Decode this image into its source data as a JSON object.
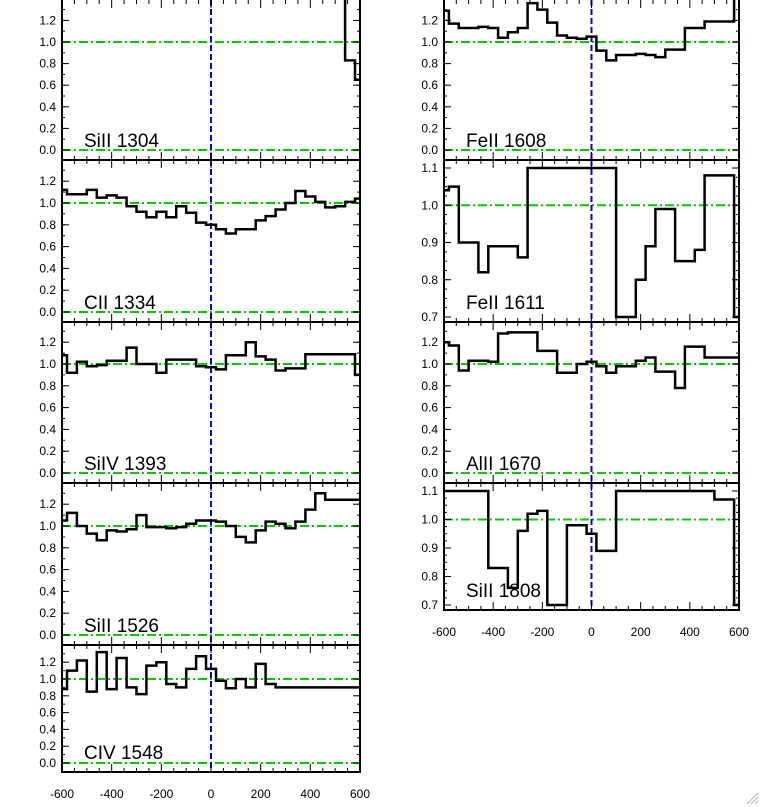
{
  "chart_data": [
    {
      "type": "line",
      "label": "SiII 1304",
      "ylim": [
        -0.08,
        1.37
      ],
      "yticks": [
        "0.0",
        "0.2",
        "0.4",
        "0.6",
        "0.8",
        "1.0",
        "1.2"
      ],
      "reference_lines": {
        "y": [
          0.0,
          1.0
        ],
        "x": [
          0
        ]
      },
      "x": [
        520,
        560,
        600
      ],
      "y": [
        1.45,
        0.83,
        0.65
      ]
    },
    {
      "type": "line",
      "label": "CII 1334",
      "ylim": [
        -0.08,
        1.37
      ],
      "yticks": [
        "0.0",
        "0.2",
        "0.4",
        "0.6",
        "0.8",
        "1.0",
        "1.2"
      ],
      "reference_lines": {
        "y": [
          0.0,
          1.0
        ],
        "x": [
          0
        ]
      },
      "x": [
        -600,
        -560,
        -520,
        -480,
        -440,
        -400,
        -360,
        -320,
        -280,
        -240,
        -200,
        -160,
        -120,
        -80,
        -40,
        0,
        40,
        80,
        120,
        160,
        200,
        240,
        280,
        320,
        360,
        400,
        440,
        480,
        520,
        560,
        600
      ],
      "y": [
        1.12,
        1.08,
        1.08,
        1.12,
        1.05,
        1.07,
        1.05,
        0.97,
        0.92,
        0.87,
        0.92,
        0.87,
        0.97,
        0.91,
        0.82,
        0.8,
        0.76,
        0.72,
        0.76,
        0.76,
        0.84,
        0.88,
        0.94,
        1.0,
        1.11,
        1.06,
        1.01,
        0.96,
        0.97,
        1.01,
        1.04
      ]
    },
    {
      "type": "line",
      "label": "SiIV 1393",
      "ylim": [
        -0.08,
        1.37
      ],
      "yticks": [
        "0.0",
        "0.2",
        "0.4",
        "0.6",
        "0.8",
        "1.0",
        "1.2"
      ],
      "reference_lines": {
        "y": [
          0.0,
          1.0
        ],
        "x": [
          0
        ]
      },
      "x": [
        -600,
        -560,
        -520,
        -480,
        -440,
        -400,
        -360,
        -320,
        -280,
        -240,
        -200,
        -160,
        -120,
        -80,
        -40,
        0,
        40,
        80,
        120,
        160,
        200,
        240,
        280,
        320,
        360,
        400,
        440,
        480,
        520,
        560,
        600
      ],
      "y": [
        1.08,
        0.92,
        1.02,
        0.98,
        0.99,
        1.03,
        1.03,
        1.15,
        1.0,
        1.0,
        0.92,
        1.04,
        1.04,
        1.04,
        0.98,
        0.97,
        0.95,
        1.08,
        1.08,
        1.2,
        1.07,
        1.04,
        0.94,
        0.96,
        0.96,
        1.09,
        1.09,
        1.09,
        1.09,
        1.09,
        0.9
      ]
    },
    {
      "type": "line",
      "label": "SiII 1526",
      "ylim": [
        -0.08,
        1.37
      ],
      "yticks": [
        "0.0",
        "0.2",
        "0.4",
        "0.6",
        "0.8",
        "1.0",
        "1.2"
      ],
      "reference_lines": {
        "y": [
          0.0,
          1.0
        ],
        "x": [
          0
        ]
      },
      "x": [
        -600,
        -560,
        -520,
        -480,
        -440,
        -400,
        -360,
        -320,
        -280,
        -240,
        -200,
        -160,
        -120,
        -80,
        -40,
        0,
        40,
        80,
        120,
        160,
        200,
        240,
        280,
        320,
        360,
        400,
        440,
        480,
        520,
        560,
        600
      ],
      "y": [
        1.05,
        1.12,
        1.0,
        0.93,
        0.87,
        0.96,
        0.95,
        0.97,
        1.1,
        0.99,
        0.99,
        0.98,
        0.99,
        1.02,
        1.05,
        1.05,
        1.04,
        1.0,
        0.9,
        0.85,
        0.96,
        1.04,
        1.02,
        0.98,
        1.04,
        1.15,
        1.3,
        1.24,
        1.24,
        1.24,
        1.24
      ]
    },
    {
      "type": "line",
      "label": "CIV 1548",
      "ylim": [
        -0.08,
        1.37
      ],
      "yticks": [
        "0.0",
        "0.2",
        "0.4",
        "0.6",
        "0.8",
        "1.0",
        "1.2"
      ],
      "reference_lines": {
        "y": [
          0.0,
          1.0
        ],
        "x": [
          0
        ]
      },
      "x": [
        -600,
        -560,
        -520,
        -480,
        -440,
        -400,
        -360,
        -320,
        -280,
        -240,
        -200,
        -160,
        -120,
        -80,
        -40,
        0,
        40,
        80,
        120,
        160,
        200,
        240,
        280,
        320,
        360,
        400,
        440,
        480,
        520,
        560,
        600
      ],
      "y": [
        0.88,
        1.1,
        1.22,
        0.85,
        1.32,
        0.88,
        1.25,
        0.9,
        0.82,
        1.16,
        1.2,
        0.94,
        0.9,
        1.12,
        1.27,
        1.12,
        0.98,
        0.89,
        1.0,
        0.9,
        1.18,
        0.94,
        0.9,
        0.9,
        0.9,
        0.9,
        0.9,
        0.9,
        0.9,
        0.9,
        0.9
      ]
    },
    {
      "type": "line",
      "label": "FeII 1608",
      "ylim": [
        -0.08,
        1.37
      ],
      "yticks": [
        "0.0",
        "0.2",
        "0.4",
        "0.6",
        "0.8",
        "1.0",
        "1.2"
      ],
      "reference_lines": {
        "y": [
          0.0,
          1.0
        ],
        "x": [
          0
        ]
      },
      "x": [
        -600,
        -560,
        -520,
        -480,
        -440,
        -400,
        -360,
        -320,
        -280,
        -240,
        -200,
        -160,
        -120,
        -80,
        -40,
        0,
        40,
        80,
        120,
        160,
        200,
        240,
        280,
        320,
        360,
        400,
        440,
        480,
        520,
        560,
        600
      ],
      "y": [
        1.29,
        1.17,
        1.13,
        1.13,
        1.14,
        1.13,
        1.04,
        1.09,
        1.13,
        1.36,
        1.3,
        1.18,
        1.06,
        1.04,
        1.03,
        1.05,
        0.92,
        0.83,
        0.88,
        0.88,
        0.89,
        0.88,
        0.86,
        0.93,
        0.93,
        1.13,
        1.13,
        1.19,
        1.19,
        1.19,
        1.47
      ]
    },
    {
      "type": "line",
      "label": "FeII 1611",
      "ylim": [
        0.7,
        1.1
      ],
      "yticks": [
        "0.7",
        "0.8",
        "0.9",
        "1.0",
        "1.1"
      ],
      "reference_lines": {
        "y": [
          1.0
        ],
        "x": [
          0
        ]
      },
      "x": [
        -600,
        -560,
        -520,
        -480,
        -440,
        -400,
        -360,
        -320,
        -280,
        -240,
        -200,
        -160,
        -120,
        -80,
        -40,
        0,
        40,
        80,
        120,
        160,
        200,
        240,
        280,
        320,
        360,
        400,
        440,
        480,
        520,
        560,
        600
      ],
      "y": [
        1.04,
        1.05,
        0.9,
        0.9,
        0.82,
        0.89,
        0.89,
        0.89,
        0.86,
        1.1,
        1.1,
        1.1,
        1.1,
        1.1,
        1.1,
        1.1,
        1.1,
        1.1,
        0.7,
        0.7,
        0.8,
        0.89,
        0.99,
        0.99,
        0.85,
        0.85,
        0.88,
        1.08,
        1.08,
        1.08,
        0.7
      ]
    },
    {
      "type": "line",
      "label": "AlII 1670",
      "ylim": [
        -0.08,
        1.37
      ],
      "yticks": [
        "0.0",
        "0.2",
        "0.4",
        "0.6",
        "0.8",
        "1.0",
        "1.2"
      ],
      "reference_lines": {
        "y": [
          0.0,
          1.0
        ],
        "x": [
          0
        ]
      },
      "x": [
        -600,
        -560,
        -520,
        -480,
        -440,
        -400,
        -360,
        -320,
        -280,
        -240,
        -200,
        -160,
        -120,
        -80,
        -40,
        0,
        40,
        80,
        120,
        160,
        200,
        240,
        280,
        320,
        360,
        400,
        440,
        480,
        520,
        560,
        600
      ],
      "y": [
        1.2,
        1.17,
        0.94,
        1.03,
        1.03,
        1.02,
        1.28,
        1.29,
        1.29,
        1.29,
        1.12,
        1.12,
        0.92,
        0.92,
        1.0,
        1.02,
        0.98,
        0.92,
        0.98,
        0.98,
        1.03,
        1.06,
        0.93,
        0.93,
        0.78,
        1.16,
        1.16,
        1.06,
        1.06,
        1.06,
        1.06
      ]
    },
    {
      "type": "line",
      "label": "SiII 1808",
      "ylim": [
        0.7,
        1.1
      ],
      "yticks": [
        "0.7",
        "0.8",
        "0.9",
        "1.0",
        "1.1"
      ],
      "reference_lines": {
        "y": [
          1.0
        ],
        "x": [
          0
        ]
      },
      "x": [
        -600,
        -560,
        -520,
        -480,
        -440,
        -400,
        -360,
        -320,
        -280,
        -240,
        -200,
        -160,
        -120,
        -80,
        -40,
        0,
        40,
        80,
        120,
        160,
        200,
        240,
        280,
        320,
        360,
        400,
        440,
        480,
        520,
        560,
        600
      ],
      "y": [
        1.1,
        1.1,
        1.1,
        1.1,
        1.1,
        0.83,
        0.83,
        0.76,
        0.96,
        1.02,
        1.03,
        0.7,
        0.7,
        0.98,
        0.98,
        0.95,
        0.89,
        0.89,
        1.1,
        1.1,
        1.1,
        1.1,
        1.1,
        1.1,
        1.1,
        1.1,
        1.1,
        1.1,
        1.07,
        1.07,
        0.7
      ]
    }
  ],
  "x_axis": {
    "xlim": [
      -600,
      600
    ],
    "tick_labels": [
      "-600",
      "-400",
      "-200",
      "0",
      "200",
      "400",
      "600"
    ]
  },
  "colors": {
    "spectrum": "#000000",
    "continuum_line": "#00cc00",
    "zero_velocity_line": "#0000dd",
    "background": "#ffffff"
  }
}
